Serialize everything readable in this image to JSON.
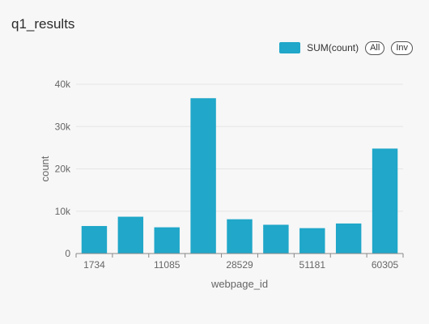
{
  "panel": {
    "title": "q1_results"
  },
  "legend": {
    "label": "SUM(count)",
    "all_label": "All",
    "inv_label": "Inv"
  },
  "chart_data": {
    "type": "bar",
    "title": "q1_results",
    "xlabel": "webpage_id",
    "ylabel": "count",
    "categories": [
      "1734",
      "",
      "11085",
      "",
      "28529",
      "",
      "51181",
      "",
      "60305"
    ],
    "series": [
      {
        "name": "SUM(count)",
        "values": [
          6500,
          8700,
          6200,
          36700,
          8100,
          6800,
          6000,
          7100,
          24800
        ]
      }
    ],
    "ylim": [
      0,
      40000
    ],
    "yticks": [
      0,
      10000,
      20000,
      30000,
      40000
    ],
    "ytick_labels": [
      "0",
      "10k",
      "20k",
      "30k",
      "40k"
    ],
    "grid": true,
    "legend_position": "top-right",
    "color": "#20a7c9"
  }
}
